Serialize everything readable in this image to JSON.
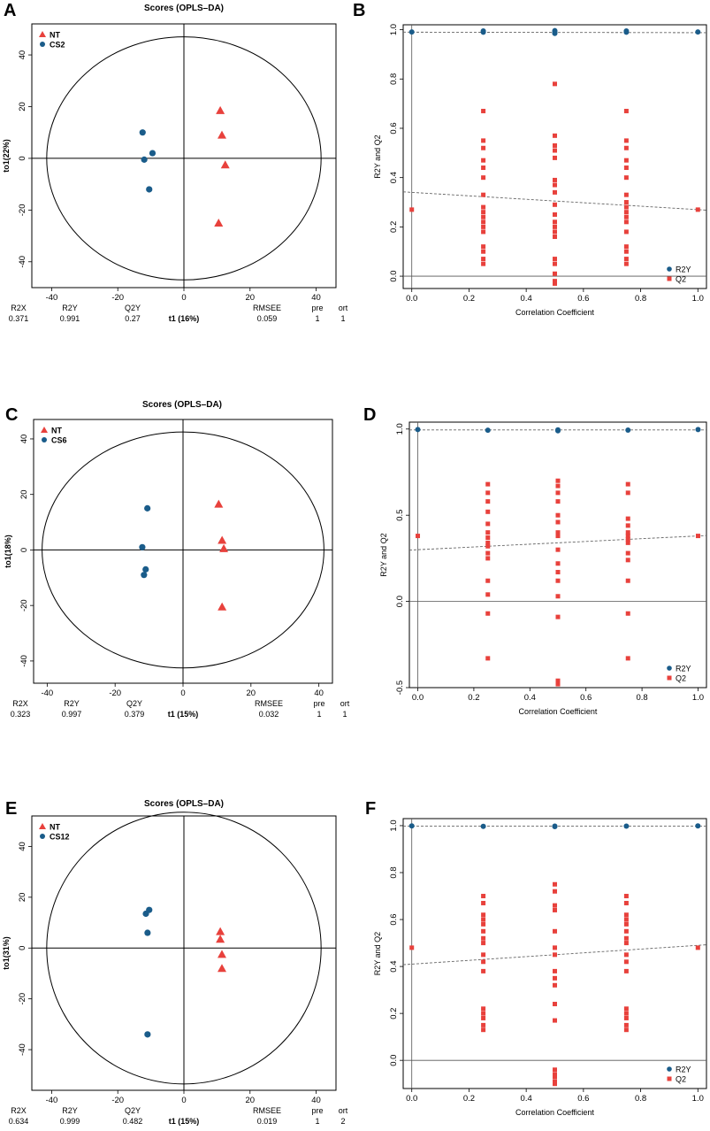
{
  "colors": {
    "red": "#e8413c",
    "blue": "#1a5c8a",
    "line": "#000000",
    "dash": "#666666"
  },
  "chart_data": [
    {
      "panel": "A",
      "type": "scatter",
      "title": "Scores (OPLS–DA)",
      "xlabel": "t1 (16%)",
      "ylabel": "to1(22%)",
      "xlim": [
        -46,
        46
      ],
      "ylim": [
        -50,
        52
      ],
      "xticks": [
        -40,
        -20,
        0,
        20,
        40
      ],
      "yticks": [
        -40,
        -20,
        0,
        20,
        40
      ],
      "ellipse": {
        "rx": 41.5,
        "ry": 47
      },
      "series": [
        {
          "name": "NT",
          "marker": "triangle",
          "x": [
            11,
            11.5,
            12.5,
            10.5
          ],
          "y": [
            18.5,
            9,
            -2.5,
            -25
          ]
        },
        {
          "name": "CS2",
          "marker": "circle",
          "x": [
            -12.5,
            -9.5,
            -12,
            -10.5
          ],
          "y": [
            10,
            2,
            -0.5,
            -12
          ]
        }
      ],
      "stats": {
        "R2X": "0.371",
        "R2Y": "0.991",
        "Q2Y": "0.27",
        "RMSEE": "0.059",
        "pre": "1",
        "ort": "1"
      }
    },
    {
      "panel": "B",
      "type": "scatter",
      "title": "",
      "xlabel": "Correlation Coefficient",
      "ylabel": "R2Y and Q2",
      "xlim": [
        -0.03,
        1.03
      ],
      "ylim": [
        -0.05,
        1.02
      ],
      "xticks": [
        0,
        0.2,
        0.4,
        0.6,
        0.8,
        1.0
      ],
      "yticks": [
        0,
        0.2,
        0.4,
        0.6,
        0.8,
        1.0
      ],
      "series": [
        {
          "name": "R2Y",
          "marker": "circle",
          "x": [
            0,
            0.25,
            0.25,
            0.5,
            0.5,
            0.5,
            0.75,
            0.75,
            1
          ],
          "y": [
            0.991,
            0.99,
            0.995,
            0.99,
            0.996,
            0.985,
            0.99,
            0.995,
            0.991
          ]
        },
        {
          "name": "Q2",
          "marker": "square",
          "x": [
            0,
            0.25,
            0.25,
            0.25,
            0.25,
            0.25,
            0.25,
            0.25,
            0.25,
            0.25,
            0.25,
            0.25,
            0.25,
            0.25,
            0.25,
            0.25,
            0.25,
            0.25,
            0.5,
            0.5,
            0.5,
            0.5,
            0.5,
            0.5,
            0.5,
            0.5,
            0.5,
            0.5,
            0.5,
            0.5,
            0.5,
            0.5,
            0.5,
            0.5,
            0.5,
            0.5,
            0.5,
            0.75,
            0.75,
            0.75,
            0.75,
            0.75,
            0.75,
            0.75,
            0.75,
            0.75,
            0.75,
            0.75,
            0.75,
            0.75,
            0.75,
            0.75,
            0.75,
            0.75,
            1
          ],
          "y": [
            0.27,
            0.67,
            0.55,
            0.52,
            0.47,
            0.44,
            0.4,
            0.33,
            0.28,
            0.26,
            0.24,
            0.22,
            0.2,
            0.18,
            0.12,
            0.1,
            0.07,
            0.05,
            0.78,
            0.57,
            0.53,
            0.51,
            0.48,
            0.39,
            0.37,
            0.34,
            0.29,
            0.25,
            0.22,
            0.2,
            0.18,
            0.16,
            0.07,
            0.05,
            0.01,
            -0.02,
            -0.03,
            0.67,
            0.55,
            0.52,
            0.47,
            0.44,
            0.4,
            0.33,
            0.3,
            0.28,
            0.26,
            0.24,
            0.22,
            0.18,
            0.12,
            0.1,
            0.07,
            0.05,
            0.27
          ]
        }
      ],
      "fit_lines": [
        {
          "name": "R2Y",
          "y0": 0.99,
          "y1": 0.988
        },
        {
          "name": "Q2",
          "y0": 0.34,
          "y1": 0.27
        }
      ]
    },
    {
      "panel": "C",
      "type": "scatter",
      "title": "Scores (OPLS–DA)",
      "xlabel": "t1 (15%)",
      "ylabel": "to1(18%)",
      "xlim": [
        -44,
        44
      ],
      "ylim": [
        -48,
        47
      ],
      "xticks": [
        -40,
        -20,
        0,
        20,
        40
      ],
      "yticks": [
        -40,
        -20,
        0,
        20,
        40
      ],
      "ellipse": {
        "rx": 41.5,
        "ry": 42.5
      },
      "series": [
        {
          "name": "NT",
          "marker": "triangle",
          "x": [
            10.5,
            11.5,
            12,
            11.5
          ],
          "y": [
            16.5,
            3.5,
            0.5,
            -20.5
          ]
        },
        {
          "name": "CS6",
          "marker": "circle",
          "x": [
            -10.5,
            -12,
            -11,
            -11.5
          ],
          "y": [
            15,
            1,
            -7,
            -9
          ]
        }
      ],
      "stats": {
        "R2X": "0.323",
        "R2Y": "0.997",
        "Q2Y": "0.379",
        "RMSEE": "0.032",
        "pre": "1",
        "ort": "1"
      }
    },
    {
      "panel": "D",
      "type": "scatter",
      "title": "",
      "xlabel": "Correlation Coefficient",
      "ylabel": "R2Y and Q2",
      "xlim": [
        -0.03,
        1.03
      ],
      "ylim": [
        -0.5,
        1.04
      ],
      "xticks": [
        0,
        0.2,
        0.4,
        0.6,
        0.8,
        1.0
      ],
      "yticks": [
        -0.5,
        0,
        0.5,
        1.0
      ],
      "series": [
        {
          "name": "R2Y",
          "marker": "circle",
          "x": [
            0,
            0.25,
            0.5,
            0.5,
            0.75,
            1
          ],
          "y": [
            0.997,
            0.993,
            0.995,
            0.99,
            0.994,
            0.997
          ]
        },
        {
          "name": "Q2",
          "marker": "square",
          "x": [
            0,
            0.25,
            0.25,
            0.25,
            0.25,
            0.25,
            0.25,
            0.25,
            0.25,
            0.25,
            0.25,
            0.25,
            0.25,
            0.25,
            0.25,
            0.25,
            0.5,
            0.5,
            0.5,
            0.5,
            0.5,
            0.5,
            0.5,
            0.5,
            0.5,
            0.5,
            0.5,
            0.5,
            0.5,
            0.5,
            0.5,
            0.5,
            0.75,
            0.75,
            0.75,
            0.75,
            0.75,
            0.75,
            0.75,
            0.75,
            0.75,
            0.75,
            0.75,
            0.75,
            0.75,
            1
          ],
          "y": [
            0.38,
            0.68,
            0.63,
            0.58,
            0.52,
            0.45,
            0.4,
            0.37,
            0.34,
            0.32,
            0.28,
            0.25,
            0.12,
            0.04,
            -0.07,
            -0.33,
            0.7,
            0.67,
            0.63,
            0.58,
            0.5,
            0.46,
            0.4,
            0.38,
            0.3,
            0.22,
            0.17,
            0.12,
            0.03,
            -0.09,
            -0.46,
            -0.48,
            0.68,
            0.63,
            0.48,
            0.44,
            0.4,
            0.38,
            0.36,
            0.34,
            0.28,
            0.24,
            0.12,
            -0.07,
            -0.33,
            0.38
          ]
        }
      ],
      "fit_lines": [
        {
          "name": "R2Y",
          "y0": 0.995,
          "y1": 0.995
        },
        {
          "name": "Q2",
          "y0": 0.3,
          "y1": 0.38
        }
      ]
    },
    {
      "panel": "E",
      "type": "scatter",
      "title": "Scores (OPLS–DA)",
      "xlabel": "t1 (15%)",
      "ylabel": "to1(31%)",
      "xlim": [
        -46,
        46
      ],
      "ylim": [
        -56,
        52
      ],
      "xticks": [
        -40,
        -20,
        0,
        20,
        40
      ],
      "yticks": [
        -40,
        -20,
        0,
        20,
        40
      ],
      "ellipse": {
        "rx": 41.5,
        "ry": 53.5
      },
      "series": [
        {
          "name": "NT",
          "marker": "triangle",
          "x": [
            11,
            11,
            11.5,
            11.5
          ],
          "y": [
            6.5,
            3.5,
            -2.5,
            -8
          ]
        },
        {
          "name": "CS12",
          "marker": "circle",
          "x": [
            -10.5,
            -11.5,
            -11,
            -11
          ],
          "y": [
            15,
            13.5,
            6,
            -34
          ]
        }
      ],
      "stats": {
        "R2X": "0.634",
        "R2Y": "0.999",
        "Q2Y": "0.482",
        "RMSEE": "0.019",
        "pre": "1",
        "ort": "2"
      }
    },
    {
      "panel": "F",
      "type": "scatter",
      "title": "",
      "xlabel": "Correlation Coefficient",
      "ylabel": "R2Y and Q2",
      "xlim": [
        -0.03,
        1.03
      ],
      "ylim": [
        -0.12,
        1.03
      ],
      "xticks": [
        0,
        0.2,
        0.4,
        0.6,
        0.8,
        1.0
      ],
      "yticks": [
        0,
        0.2,
        0.4,
        0.6,
        0.8,
        1.0
      ],
      "series": [
        {
          "name": "R2Y",
          "marker": "circle",
          "x": [
            0,
            0.25,
            0.5,
            0.5,
            0.75,
            1
          ],
          "y": [
            0.999,
            0.997,
            0.998,
            0.996,
            0.998,
            0.999
          ]
        },
        {
          "name": "Q2",
          "marker": "square",
          "x": [
            0,
            0.25,
            0.25,
            0.25,
            0.25,
            0.25,
            0.25,
            0.25,
            0.25,
            0.25,
            0.25,
            0.25,
            0.25,
            0.25,
            0.25,
            0.25,
            0.25,
            0.5,
            0.5,
            0.5,
            0.5,
            0.5,
            0.5,
            0.5,
            0.5,
            0.5,
            0.5,
            0.5,
            0.5,
            0.5,
            0.5,
            0.5,
            0.5,
            0.5,
            0.75,
            0.75,
            0.75,
            0.75,
            0.75,
            0.75,
            0.75,
            0.75,
            0.75,
            0.75,
            0.75,
            0.75,
            0.75,
            0.75,
            0.75,
            0.75,
            1
          ],
          "y": [
            0.48,
            0.7,
            0.67,
            0.62,
            0.6,
            0.58,
            0.55,
            0.52,
            0.5,
            0.45,
            0.42,
            0.38,
            0.22,
            0.2,
            0.18,
            0.15,
            0.13,
            0.75,
            0.72,
            0.66,
            0.64,
            0.55,
            0.48,
            0.45,
            0.38,
            0.35,
            0.32,
            0.24,
            0.17,
            -0.04,
            -0.06,
            -0.07,
            -0.09,
            -0.1,
            0.7,
            0.67,
            0.62,
            0.6,
            0.58,
            0.55,
            0.52,
            0.5,
            0.45,
            0.42,
            0.38,
            0.22,
            0.2,
            0.18,
            0.15,
            0.13,
            0.48
          ]
        }
      ],
      "fit_lines": [
        {
          "name": "R2Y",
          "y0": 0.998,
          "y1": 0.998
        },
        {
          "name": "Q2",
          "y0": 0.41,
          "y1": 0.49
        }
      ]
    }
  ],
  "stat_labels": {
    "R2X": "R2X",
    "R2Y": "R2Y",
    "Q2Y": "Q2Y",
    "RMSEE": "RMSEE",
    "pre": "pre",
    "ort": "ort"
  }
}
